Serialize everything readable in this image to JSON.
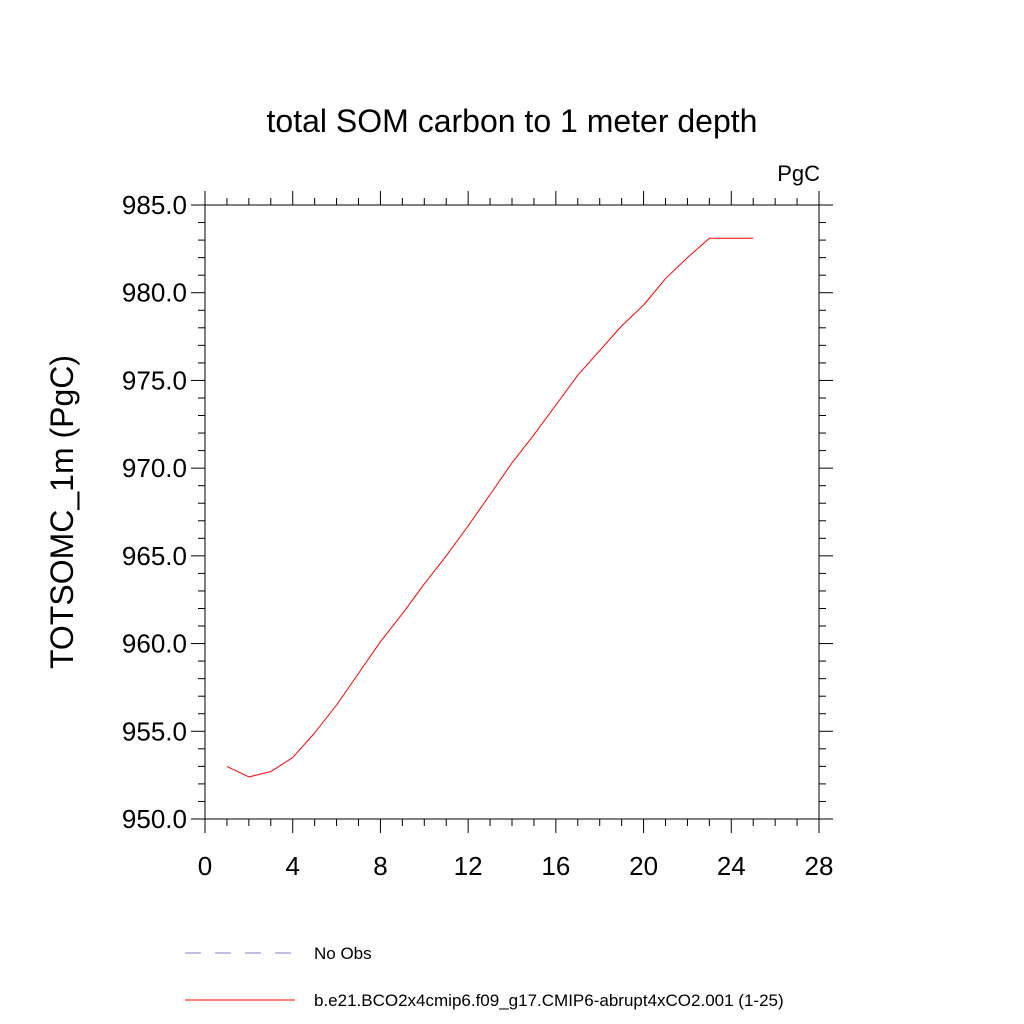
{
  "chart_data": {
    "type": "line",
    "title": "total SOM carbon to 1 meter depth",
    "units": "PgC",
    "xlabel": "",
    "ylabel": "TOTSOMC_1m  (PgC)",
    "xlim": [
      0,
      28
    ],
    "ylim": [
      950.0,
      985.0
    ],
    "x_ticks": [
      0,
      4,
      8,
      12,
      16,
      20,
      24,
      28
    ],
    "x_tick_labels": [
      "0",
      "4",
      "8",
      "12",
      "16",
      "20",
      "24",
      "28"
    ],
    "y_ticks": [
      950.0,
      955.0,
      960.0,
      965.0,
      970.0,
      975.0,
      980.0,
      985.0
    ],
    "y_tick_labels": [
      "950.0",
      "955.0",
      "960.0",
      "965.0",
      "970.0",
      "975.0",
      "980.0",
      "985.0"
    ],
    "grid": false,
    "series": [
      {
        "name": "b.e21.BCO2x4cmip6.f09_g17.CMIP6-abrupt4xCO2.001 (1-25)",
        "color": "#ff0000",
        "style": "solid",
        "x": [
          1,
          2,
          3,
          4,
          5,
          6,
          7,
          8,
          9,
          10,
          11,
          12,
          13,
          14,
          15,
          16,
          17,
          18,
          19,
          20,
          21,
          22,
          23,
          24,
          25
        ],
        "y": [
          953.0,
          952.4,
          952.7,
          953.5,
          954.9,
          956.5,
          958.3,
          960.1,
          961.7,
          963.4,
          965.0,
          966.7,
          968.5,
          970.3,
          971.9,
          973.6,
          975.3,
          976.7,
          978.1,
          979.3,
          980.8,
          982.0,
          983.1,
          983.1,
          983.1
        ]
      }
    ],
    "legend": [
      {
        "label": "No Obs",
        "color": "#8080c0",
        "style": "dashed"
      },
      {
        "label": "b.e21.BCO2x4cmip6.f09_g17.CMIP6-abrupt4xCO2.001 (1-25)",
        "color": "#ff0000",
        "style": "solid"
      }
    ],
    "legend_position": "bottom"
  }
}
